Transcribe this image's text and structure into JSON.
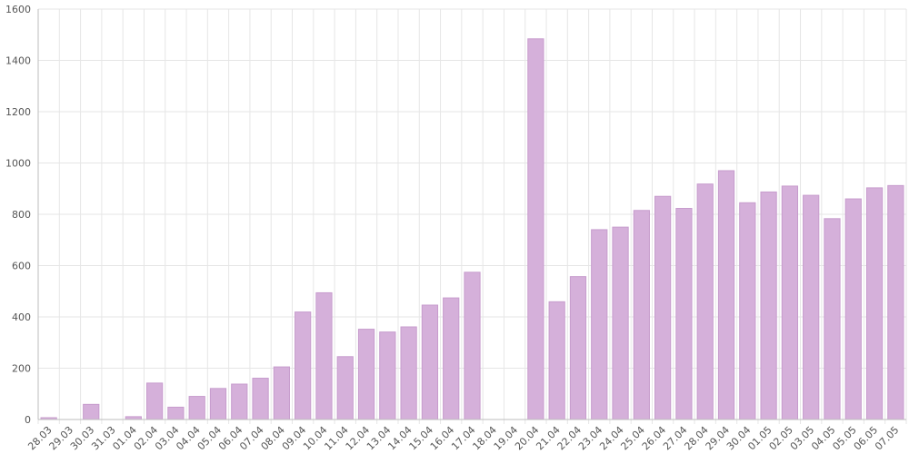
{
  "chart_data": {
    "type": "bar",
    "title": "",
    "xlabel": "",
    "ylabel": "",
    "ylim": [
      0,
      1600
    ],
    "yticks": [
      0,
      200,
      400,
      600,
      800,
      1000,
      1200,
      1400,
      1600
    ],
    "grid": true,
    "legend": "none",
    "bar_color": "#d5b0da",
    "bar_border_color": "#c79ccd",
    "categories": [
      "28.03",
      "29.03",
      "30.03",
      "31.03",
      "01.04",
      "02.04",
      "03.04",
      "04.04",
      "05.04",
      "06.04",
      "07.04",
      "08.04",
      "09.04",
      "10.04",
      "11.04",
      "12.04",
      "13.04",
      "14.04",
      "15.04",
      "16.04",
      "17.04",
      "18.04",
      "19.04",
      "20.04",
      "21.04",
      "22.04",
      "23.04",
      "24.04",
      "25.04",
      "26.04",
      "27.04",
      "28.04",
      "29.04",
      "30.04",
      "01.05",
      "02.05",
      "03.05",
      "04.05",
      "05.05",
      "06.05",
      "07.05"
    ],
    "values": [
      7,
      0,
      59,
      0,
      11,
      142,
      48,
      90,
      121,
      138,
      161,
      205,
      419,
      494,
      245,
      352,
      341,
      361,
      446,
      474,
      574,
      0,
      0,
      1484,
      459,
      557,
      740,
      750,
      815,
      870,
      823,
      918,
      970,
      845,
      887,
      910,
      874,
      783,
      860,
      903,
      912
    ]
  }
}
